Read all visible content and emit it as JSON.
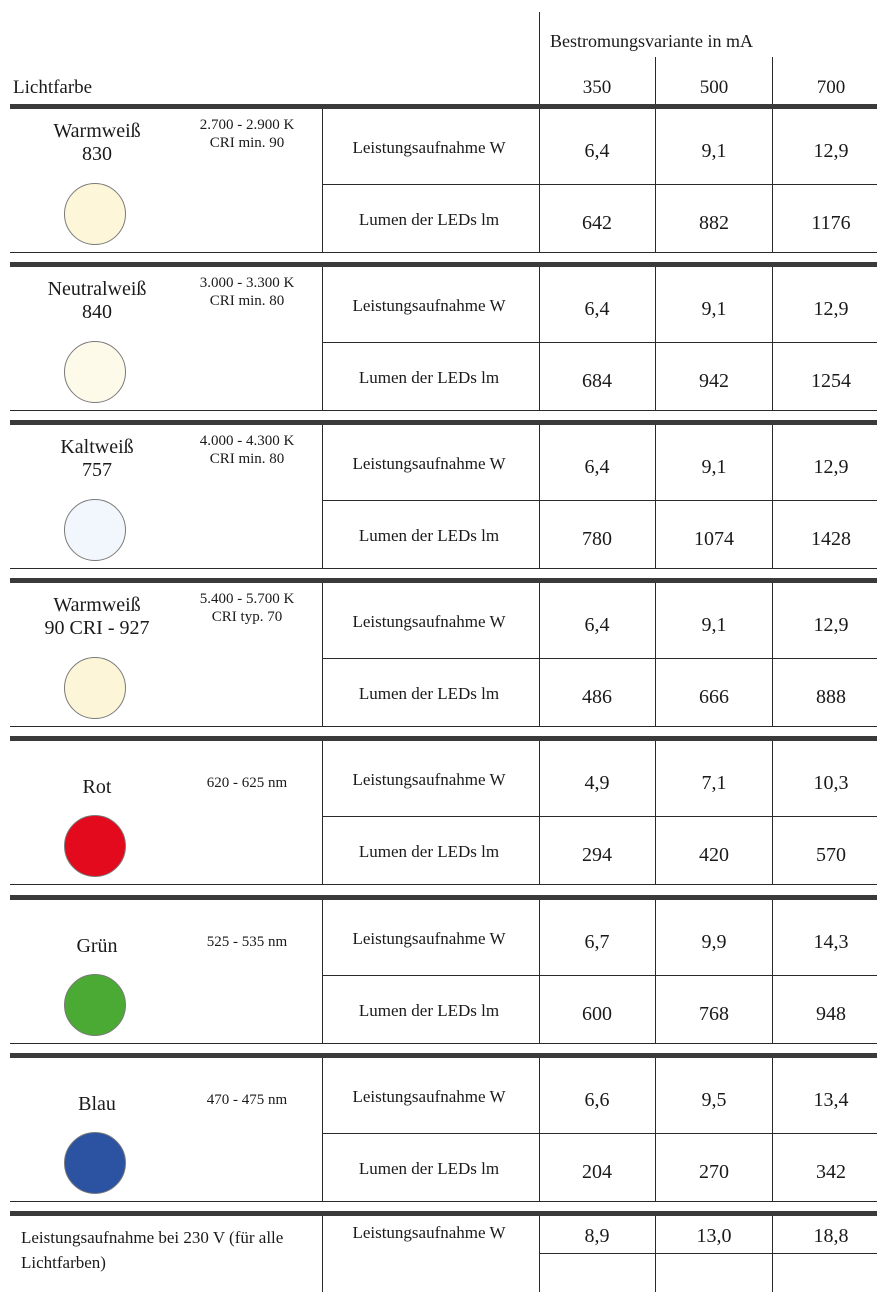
{
  "header": {
    "group_label": "Bestromungsvariante in mA",
    "left_label": "Lichtfarbe",
    "columns": [
      "350",
      "500",
      "700"
    ]
  },
  "row_labels": {
    "power": "Leistungsaufnahme W",
    "lumen": "Lumen der LEDs lm"
  },
  "groups": [
    {
      "name1": "Warmweiß",
      "name2": "830",
      "spec1": "2.700 - 2.900 K",
      "spec2": "CRI min. 90",
      "color": "#fdf6d8",
      "power": [
        "6,4",
        "9,1",
        "12,9"
      ],
      "lumen": [
        "642",
        "882",
        "1176"
      ]
    },
    {
      "name1": "Neutralweiß",
      "name2": "840",
      "spec1": "3.000 - 3.300 K",
      "spec2": "CRI min. 80",
      "color": "#fefaea",
      "power": [
        "6,4",
        "9,1",
        "12,9"
      ],
      "lumen": [
        "684",
        "942",
        "1254"
      ]
    },
    {
      "name1": "Kaltweiß",
      "name2": "757",
      "spec1": "4.000 - 4.300 K",
      "spec2": "CRI min. 80",
      "color": "#f1f7fc",
      "power": [
        "6,4",
        "9,1",
        "12,9"
      ],
      "lumen": [
        "780",
        "1074",
        "1428"
      ]
    },
    {
      "name1": "Warmweiß",
      "name2": "90 CRI - 927",
      "spec1": "5.400 - 5.700 K",
      "spec2": "CRI typ. 70",
      "color": "#fcf5d8",
      "power": [
        "6,4",
        "9,1",
        "12,9"
      ],
      "lumen": [
        "486",
        "666",
        "888"
      ]
    },
    {
      "name1": "Rot",
      "name2": "",
      "spec1": "620 - 625 nm",
      "spec2": "",
      "color": "#e30a1e",
      "power": [
        "4,9",
        "7,1",
        "10,3"
      ],
      "lumen": [
        "294",
        "420",
        "570"
      ]
    },
    {
      "name1": "Grün",
      "name2": "",
      "spec1": "525 - 535 nm",
      "spec2": "",
      "color": "#4aaa34",
      "power": [
        "6,7",
        "9,9",
        "14,3"
      ],
      "lumen": [
        "600",
        "768",
        "948"
      ]
    },
    {
      "name1": "Blau",
      "name2": "",
      "spec1": "470 - 475 nm",
      "spec2": "",
      "color": "#2c53a2",
      "power": [
        "6,6",
        "9,5",
        "13,4"
      ],
      "lumen": [
        "204",
        "270",
        "342"
      ]
    }
  ],
  "footer": {
    "label": "Leistungsaufnahme bei 230 V (für alle Lichtfarben)",
    "row_label": "Leistungsaufnahme W",
    "values": [
      "8,9",
      "13,0",
      "18,8"
    ]
  }
}
